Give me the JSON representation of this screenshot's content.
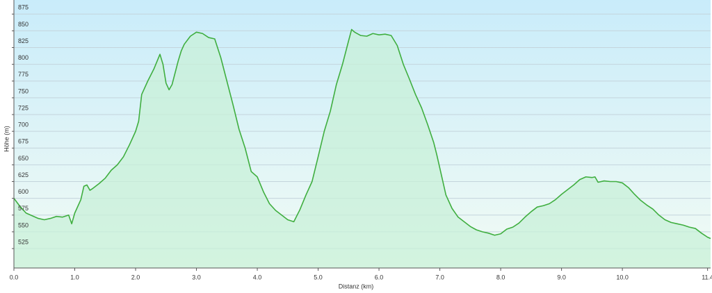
{
  "chart_data": {
    "type": "area",
    "xlabel": "Distanz  (km)",
    "ylabel": "Höhe (m)",
    "x": [
      0,
      0.1,
      0.2,
      0.3,
      0.4,
      0.5,
      0.6,
      0.7,
      0.8,
      0.9,
      0.95,
      1.0,
      1.1,
      1.15,
      1.2,
      1.25,
      1.3,
      1.4,
      1.5,
      1.6,
      1.7,
      1.8,
      1.9,
      2.0,
      2.05,
      2.1,
      2.2,
      2.3,
      2.4,
      2.45,
      2.5,
      2.55,
      2.6,
      2.7,
      2.75,
      2.8,
      2.9,
      3.0,
      3.1,
      3.2,
      3.3,
      3.4,
      3.5,
      3.6,
      3.7,
      3.8,
      3.9,
      4.0,
      4.1,
      4.2,
      4.3,
      4.4,
      4.5,
      4.6,
      4.7,
      4.8,
      4.9,
      5.0,
      5.1,
      5.2,
      5.3,
      5.4,
      5.5,
      5.55,
      5.6,
      5.7,
      5.8,
      5.9,
      6.0,
      6.1,
      6.2,
      6.3,
      6.4,
      6.5,
      6.6,
      6.7,
      6.8,
      6.9,
      6.95,
      7.0,
      7.05,
      7.1,
      7.2,
      7.3,
      7.4,
      7.5,
      7.6,
      7.7,
      7.8,
      7.9,
      8.0,
      8.1,
      8.2,
      8.3,
      8.4,
      8.5,
      8.6,
      8.7,
      8.8,
      8.9,
      9.0,
      9.1,
      9.2,
      9.3,
      9.4,
      9.5,
      9.55,
      9.6,
      9.7,
      9.8,
      9.9,
      10.0,
      10.1,
      10.2,
      10.3,
      10.4,
      10.5,
      10.6,
      10.7,
      10.8,
      10.9,
      11.0,
      11.1,
      11.2,
      11.3,
      11.4,
      11.45
    ],
    "values": [
      600,
      588,
      578,
      574,
      570,
      568,
      570,
      573,
      572,
      575,
      562,
      578,
      598,
      618,
      620,
      612,
      615,
      622,
      630,
      642,
      650,
      662,
      680,
      700,
      715,
      755,
      775,
      793,
      815,
      800,
      772,
      762,
      770,
      805,
      820,
      830,
      842,
      848,
      846,
      840,
      838,
      810,
      775,
      740,
      703,
      675,
      640,
      632,
      610,
      592,
      582,
      575,
      568,
      565,
      583,
      605,
      625,
      662,
      700,
      730,
      770,
      800,
      835,
      852,
      848,
      843,
      842,
      846,
      844,
      845,
      843,
      828,
      800,
      778,
      755,
      735,
      710,
      683,
      665,
      645,
      625,
      605,
      585,
      572,
      565,
      558,
      553,
      550,
      548,
      545,
      547,
      554,
      557,
      563,
      572,
      580,
      587,
      589,
      592,
      598,
      606,
      613,
      620,
      628,
      632,
      631,
      632,
      624,
      626,
      625,
      625,
      623,
      616,
      606,
      597,
      590,
      584,
      575,
      568,
      564,
      562,
      560,
      557,
      555,
      548,
      542,
      540
    ],
    "color": "#3fae3f",
    "fill_color": "#c8f0d8",
    "xlim": [
      0,
      11.45
    ],
    "ylim": [
      496,
      896
    ],
    "xticks": [
      {
        "value": 0,
        "label": "0.0"
      },
      {
        "value": 1,
        "label": "1.0"
      },
      {
        "value": 2,
        "label": "2.0"
      },
      {
        "value": 3,
        "label": "3.0"
      },
      {
        "value": 4,
        "label": "4.0"
      },
      {
        "value": 5,
        "label": "5.0"
      },
      {
        "value": 6,
        "label": "6.0"
      },
      {
        "value": 7,
        "label": "7.0"
      },
      {
        "value": 8,
        "label": "8.0"
      },
      {
        "value": 9,
        "label": "9.0"
      },
      {
        "value": 10,
        "label": "10.0"
      },
      {
        "value": 11.4,
        "label": "11.4"
      }
    ],
    "yticks": [
      525,
      550,
      575,
      600,
      625,
      650,
      675,
      700,
      725,
      750,
      775,
      800,
      825,
      850,
      875
    ],
    "grid": true
  }
}
